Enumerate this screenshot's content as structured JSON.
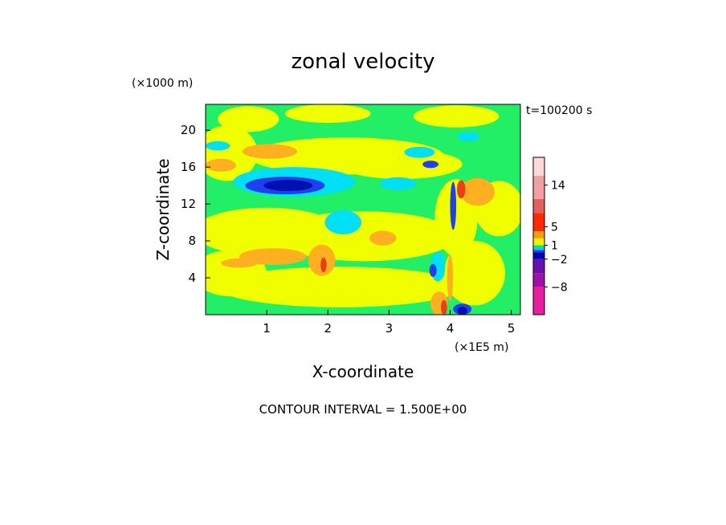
{
  "chart_data": {
    "type": "heatmap",
    "title": "zonal velocity",
    "xlabel": "X-coordinate",
    "ylabel": "Z-coordinate",
    "x_unit": "(×1E5 m)",
    "y_unit": "(×1000 m)",
    "time_label": "t=100200 s",
    "footer": "CONTOUR INTERVAL = 1.500E+00",
    "xlim": [
      0,
      5.15
    ],
    "ylim": [
      0,
      22.8
    ],
    "x_ticks": [
      "1",
      "2",
      "3",
      "4",
      "5"
    ],
    "y_ticks": [
      "4",
      "8",
      "12",
      "16",
      "20"
    ],
    "grid": false,
    "colorbar": {
      "labels": [
        "14",
        "5",
        "1",
        "−2",
        "−8"
      ],
      "label_values": [
        14,
        5,
        1,
        -2,
        -8
      ],
      "value_range": [
        -14,
        20
      ],
      "bands": [
        {
          "from": -14,
          "to": -8,
          "color": "#e81ea0"
        },
        {
          "from": -8,
          "to": -5,
          "color": "#a010a8"
        },
        {
          "from": -5,
          "to": -2,
          "color": "#6a10b0"
        },
        {
          "from": -2,
          "to": -0.5,
          "color": "#0000b4"
        },
        {
          "from": -0.5,
          "to": 0,
          "color": "#1e46dc"
        },
        {
          "from": 0,
          "to": 0.5,
          "color": "#00c8ff"
        },
        {
          "from": 0.5,
          "to": 1,
          "color": "#16e06a"
        },
        {
          "from": 1,
          "to": 2.5,
          "color": "#f0f000"
        },
        {
          "from": 2.5,
          "to": 4,
          "color": "#f0a000"
        },
        {
          "from": 4,
          "to": 8,
          "color": "#ff2a00"
        },
        {
          "from": 8,
          "to": 11,
          "color": "#e06060"
        },
        {
          "from": 11,
          "to": 16,
          "color": "#f0a0a0"
        },
        {
          "from": 16,
          "to": 20,
          "color": "#ffd8d8"
        }
      ]
    },
    "colors": {
      "green": "#22ee66",
      "yellow": "#f0ff00",
      "cyan": "#00e0f4",
      "orange": "#ffb020",
      "red": "#e84010",
      "blue": "#2040f0",
      "dark_blue": "#0010b0"
    },
    "field": [
      {
        "level": "yellow",
        "x": 0.7,
        "y": 21.2,
        "rx": 0.5,
        "ry": 1.4
      },
      {
        "level": "yellow",
        "x": 2.0,
        "y": 21.8,
        "rx": 0.7,
        "ry": 1.0
      },
      {
        "level": "yellow",
        "x": 4.1,
        "y": 21.5,
        "rx": 0.7,
        "ry": 1.2
      },
      {
        "level": "yellow",
        "x": 2.3,
        "y": 17.2,
        "rx": 1.6,
        "ry": 2.0
      },
      {
        "level": "yellow",
        "x": 0.35,
        "y": 17.5,
        "rx": 0.5,
        "ry": 3.0
      },
      {
        "level": "yellow",
        "x": 3.2,
        "y": 16.3,
        "rx": 1.0,
        "ry": 1.6
      },
      {
        "level": "yellow",
        "x": 1.0,
        "y": 9.0,
        "rx": 1.2,
        "ry": 2.6
      },
      {
        "level": "yellow",
        "x": 2.6,
        "y": 8.5,
        "rx": 1.5,
        "ry": 2.7
      },
      {
        "level": "yellow",
        "x": 4.1,
        "y": 10.5,
        "rx": 0.35,
        "ry": 4.2
      },
      {
        "level": "yellow",
        "x": 4.8,
        "y": 11.5,
        "rx": 0.4,
        "ry": 3.0
      },
      {
        "level": "yellow",
        "x": 4.4,
        "y": 4.5,
        "rx": 0.5,
        "ry": 3.5
      },
      {
        "level": "yellow",
        "x": 2.2,
        "y": 3.0,
        "rx": 2.0,
        "ry": 2.2
      },
      {
        "level": "yellow",
        "x": 0.4,
        "y": 4.5,
        "rx": 0.6,
        "ry": 2.5
      },
      {
        "level": "orange",
        "x": 1.05,
        "y": 17.7,
        "rx": 0.45,
        "ry": 0.8
      },
      {
        "level": "orange",
        "x": 0.25,
        "y": 16.2,
        "rx": 0.25,
        "ry": 0.7
      },
      {
        "level": "orange",
        "x": 1.1,
        "y": 6.3,
        "rx": 0.55,
        "ry": 0.9
      },
      {
        "level": "orange",
        "x": 0.55,
        "y": 5.6,
        "rx": 0.3,
        "ry": 0.5
      },
      {
        "level": "orange",
        "x": 1.9,
        "y": 5.9,
        "rx": 0.22,
        "ry": 1.7
      },
      {
        "level": "orange",
        "x": 2.9,
        "y": 8.3,
        "rx": 0.22,
        "ry": 0.8
      },
      {
        "level": "orange",
        "x": 4.45,
        "y": 13.3,
        "rx": 0.28,
        "ry": 1.5
      },
      {
        "level": "orange",
        "x": 3.82,
        "y": 1.2,
        "rx": 0.14,
        "ry": 1.3
      },
      {
        "level": "orange",
        "x": 4.0,
        "y": 4.0,
        "rx": 0.05,
        "ry": 2.5
      },
      {
        "level": "red",
        "x": 1.93,
        "y": 5.4,
        "rx": 0.05,
        "ry": 0.8
      },
      {
        "level": "red",
        "x": 4.18,
        "y": 13.6,
        "rx": 0.07,
        "ry": 1.0
      },
      {
        "level": "red",
        "x": 3.9,
        "y": 0.8,
        "rx": 0.05,
        "ry": 0.8
      },
      {
        "level": "cyan",
        "x": 1.45,
        "y": 14.4,
        "rx": 1.0,
        "ry": 1.6
      },
      {
        "level": "cyan",
        "x": 2.25,
        "y": 10.0,
        "rx": 0.3,
        "ry": 1.3
      },
      {
        "level": "cyan",
        "x": 3.15,
        "y": 14.2,
        "rx": 0.3,
        "ry": 0.7
      },
      {
        "level": "cyan",
        "x": 3.5,
        "y": 17.6,
        "rx": 0.25,
        "ry": 0.6
      },
      {
        "level": "cyan",
        "x": 4.3,
        "y": 19.3,
        "rx": 0.18,
        "ry": 0.5
      },
      {
        "level": "cyan",
        "x": 0.2,
        "y": 18.3,
        "rx": 0.2,
        "ry": 0.5
      },
      {
        "level": "cyan",
        "x": 3.8,
        "y": 5.2,
        "rx": 0.12,
        "ry": 1.6
      },
      {
        "level": "blue",
        "x": 1.3,
        "y": 14.0,
        "rx": 0.65,
        "ry": 0.95
      },
      {
        "level": "blue",
        "x": 3.72,
        "y": 4.8,
        "rx": 0.06,
        "ry": 0.7
      },
      {
        "level": "blue",
        "x": 4.05,
        "y": 11.8,
        "rx": 0.05,
        "ry": 2.6
      },
      {
        "level": "blue",
        "x": 3.68,
        "y": 16.3,
        "rx": 0.13,
        "ry": 0.4
      },
      {
        "level": "blue",
        "x": 4.2,
        "y": 0.6,
        "rx": 0.15,
        "ry": 0.6
      },
      {
        "level": "dark_blue",
        "x": 1.35,
        "y": 14.0,
        "rx": 0.4,
        "ry": 0.6
      },
      {
        "level": "dark_blue",
        "x": 4.2,
        "y": 0.4,
        "rx": 0.08,
        "ry": 0.45
      }
    ]
  }
}
